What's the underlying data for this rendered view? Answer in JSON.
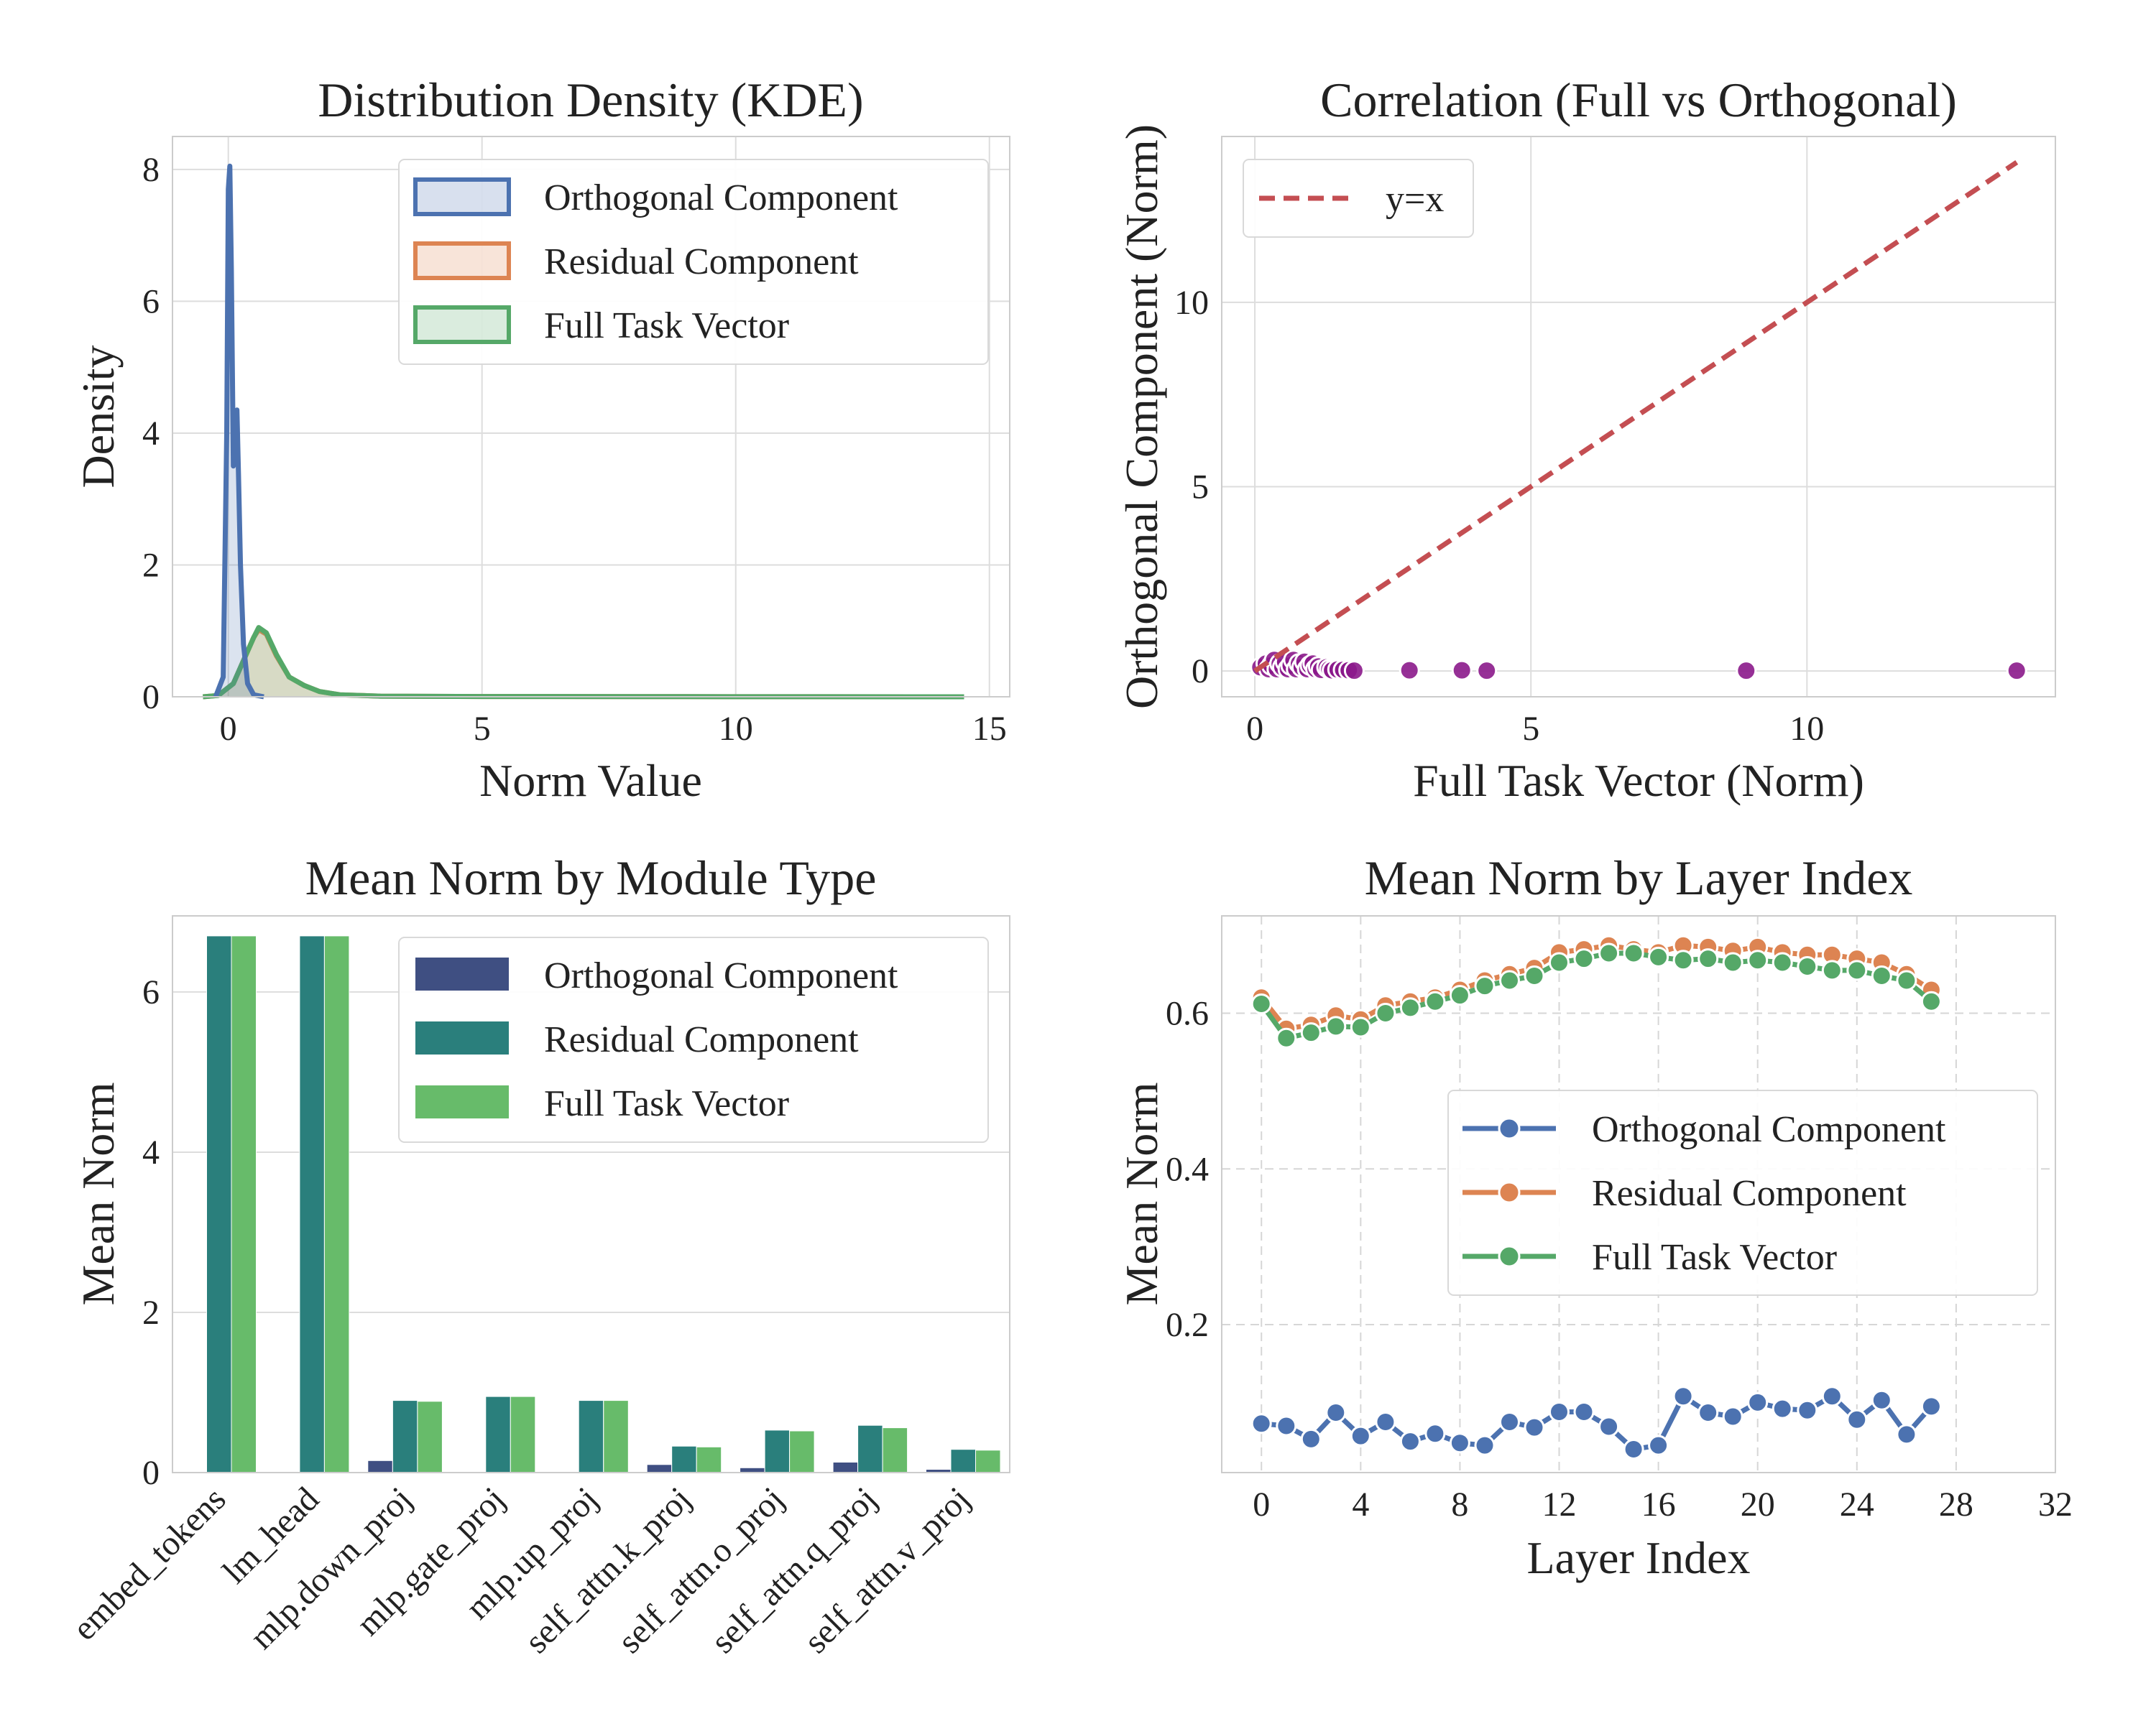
{
  "colors": {
    "orthogonal": "#4c72b0",
    "residual": "#dd8452",
    "full": "#55a868",
    "scatter": "#8b1a8b",
    "yx": "#c44e52",
    "bar_orthogonal": "#3f4f82",
    "bar_residual": "#2a7f7c",
    "bar_full": "#67bb6a"
  },
  "chart_data": [
    {
      "type": "area",
      "title": "Distribution Density (KDE)",
      "xlabel": "Norm Value",
      "ylabel": "Density",
      "xlim": [
        -1.1,
        15.4
      ],
      "ylim": [
        0,
        8.5
      ],
      "xticks": [
        0,
        5,
        10,
        15
      ],
      "yticks": [
        0,
        2,
        4,
        6,
        8
      ],
      "legend_loc": "top-right",
      "series": [
        {
          "name": "Orthogonal Component",
          "key": "orthogonal",
          "points": [
            [
              -0.25,
              0
            ],
            [
              -0.1,
              0.3
            ],
            [
              -0.03,
              4.0
            ],
            [
              0.0,
              7.7
            ],
            [
              0.03,
              8.05
            ],
            [
              0.06,
              6.5
            ],
            [
              0.1,
              3.5
            ],
            [
              0.13,
              4.2
            ],
            [
              0.17,
              4.35
            ],
            [
              0.2,
              3.4
            ],
            [
              0.24,
              2.0
            ],
            [
              0.3,
              0.8
            ],
            [
              0.38,
              0.2
            ],
            [
              0.5,
              0.03
            ],
            [
              0.7,
              0
            ]
          ]
        },
        {
          "name": "Residual Component",
          "key": "residual",
          "points": [
            [
              -0.5,
              0
            ],
            [
              -0.2,
              0.02
            ],
            [
              0.1,
              0.2
            ],
            [
              0.3,
              0.55
            ],
            [
              0.5,
              0.9
            ],
            [
              0.6,
              1.02
            ],
            [
              0.75,
              0.95
            ],
            [
              0.95,
              0.62
            ],
            [
              1.2,
              0.3
            ],
            [
              1.5,
              0.17
            ],
            [
              1.8,
              0.08
            ],
            [
              2.2,
              0.03
            ],
            [
              3.0,
              0.01
            ],
            [
              5.0,
              0.004
            ],
            [
              9.0,
              0.002
            ],
            [
              14.5,
              0
            ]
          ]
        },
        {
          "name": "Full Task Vector",
          "key": "full",
          "points": [
            [
              -0.5,
              0
            ],
            [
              -0.2,
              0.02
            ],
            [
              0.1,
              0.2
            ],
            [
              0.3,
              0.55
            ],
            [
              0.5,
              0.9
            ],
            [
              0.6,
              1.05
            ],
            [
              0.75,
              0.97
            ],
            [
              0.95,
              0.64
            ],
            [
              1.2,
              0.3
            ],
            [
              1.5,
              0.17
            ],
            [
              1.8,
              0.08
            ],
            [
              2.2,
              0.03
            ],
            [
              3.0,
              0.01
            ],
            [
              5.0,
              0.004
            ],
            [
              9.0,
              0.002
            ],
            [
              14.5,
              0
            ]
          ]
        }
      ]
    },
    {
      "type": "scatter",
      "title": "Correlation (Full vs Orthogonal)",
      "xlabel": "Full Task Vector (Norm)",
      "ylabel": "Orthogonal Component (Norm)",
      "xlim": [
        -0.6,
        14.5
      ],
      "ylim": [
        -0.7,
        14.5
      ],
      "xticks": [
        0,
        5,
        10
      ],
      "yticks": [
        0,
        5,
        10
      ],
      "legend_loc": "top-left",
      "line": {
        "name": "y=x",
        "points": [
          [
            0,
            0
          ],
          [
            13.8,
            13.8
          ]
        ]
      },
      "points": [
        [
          0.1,
          0.1
        ],
        [
          0.2,
          0.2
        ],
        [
          0.25,
          0.05
        ],
        [
          0.3,
          0.15
        ],
        [
          0.35,
          0.3
        ],
        [
          0.4,
          0.05
        ],
        [
          0.45,
          0.2
        ],
        [
          0.5,
          0.1
        ],
        [
          0.55,
          0.25
        ],
        [
          0.6,
          0.05
        ],
        [
          0.65,
          0.15
        ],
        [
          0.7,
          0.3
        ],
        [
          0.75,
          0.05
        ],
        [
          0.8,
          0.2
        ],
        [
          0.85,
          0.1
        ],
        [
          0.9,
          0.25
        ],
        [
          0.95,
          0.05
        ],
        [
          1.0,
          0.15
        ],
        [
          1.05,
          0.2
        ],
        [
          1.1,
          0.05
        ],
        [
          1.15,
          0.12
        ],
        [
          1.2,
          0.03
        ],
        [
          1.3,
          0.1
        ],
        [
          1.35,
          0.05
        ],
        [
          1.4,
          0.02
        ],
        [
          1.5,
          0.04
        ],
        [
          1.6,
          0.03
        ],
        [
          1.7,
          0.02
        ],
        [
          1.8,
          0.01
        ],
        [
          2.8,
          0.02
        ],
        [
          3.75,
          0.02
        ],
        [
          4.2,
          0.01
        ],
        [
          8.9,
          0.01
        ],
        [
          13.8,
          0.01
        ]
      ]
    },
    {
      "type": "bar",
      "title": "Mean Norm by Module Type",
      "xlabel": "",
      "ylabel": "Mean Norm",
      "ylim": [
        0,
        6.95
      ],
      "yticks": [
        0,
        2,
        4,
        6
      ],
      "legend_loc": "top-right",
      "categories": [
        "embed_tokens",
        "lm_head",
        "mlp.down_proj",
        "mlp.gate_proj",
        "mlp.up_proj",
        "self_attn.k_proj",
        "self_attn.o_proj",
        "self_attn.q_proj",
        "self_attn.v_proj"
      ],
      "series": [
        {
          "name": "Orthogonal Component",
          "key": "bar_orthogonal",
          "values": [
            0.0,
            0.0,
            0.15,
            0.0,
            0.0,
            0.1,
            0.06,
            0.13,
            0.04
          ]
        },
        {
          "name": "Residual Component",
          "key": "bar_residual",
          "values": [
            6.7,
            6.7,
            0.9,
            0.95,
            0.9,
            0.33,
            0.53,
            0.59,
            0.29
          ]
        },
        {
          "name": "Full Task Vector",
          "key": "bar_full",
          "values": [
            6.7,
            6.7,
            0.89,
            0.95,
            0.9,
            0.32,
            0.52,
            0.56,
            0.28
          ]
        }
      ]
    },
    {
      "type": "line",
      "title": "Mean Norm by Layer Index",
      "xlabel": "Layer Index",
      "ylabel": "Mean Norm",
      "xlim": [
        -1.6,
        32
      ],
      "ylim": [
        0.01,
        0.725
      ],
      "xticks": [
        0,
        4,
        8,
        12,
        16,
        20,
        24,
        28,
        32
      ],
      "yticks": [
        0.2,
        0.4,
        0.6
      ],
      "legend_loc": "center-right",
      "x": [
        0,
        1,
        2,
        3,
        4,
        5,
        6,
        7,
        8,
        9,
        10,
        11,
        12,
        13,
        14,
        15,
        16,
        17,
        18,
        19,
        20,
        21,
        22,
        23,
        24,
        25,
        26,
        27
      ],
      "series": [
        {
          "name": "Orthogonal Component",
          "key": "orthogonal",
          "values": [
            0.073,
            0.07,
            0.053,
            0.087,
            0.057,
            0.075,
            0.05,
            0.06,
            0.048,
            0.045,
            0.075,
            0.068,
            0.088,
            0.088,
            0.069,
            0.04,
            0.045,
            0.108,
            0.087,
            0.082,
            0.1,
            0.092,
            0.09,
            0.108,
            0.078,
            0.103,
            0.059,
            0.095
          ]
        },
        {
          "name": "Residual Component",
          "key": "residual",
          "values": [
            0.62,
            0.58,
            0.585,
            0.597,
            0.592,
            0.61,
            0.615,
            0.62,
            0.63,
            0.642,
            0.65,
            0.658,
            0.678,
            0.682,
            0.687,
            0.682,
            0.678,
            0.687,
            0.685,
            0.68,
            0.685,
            0.678,
            0.675,
            0.675,
            0.67,
            0.665,
            0.65,
            0.63
          ]
        },
        {
          "name": "Full Task Vector",
          "key": "full",
          "values": [
            0.612,
            0.568,
            0.575,
            0.583,
            0.582,
            0.6,
            0.607,
            0.615,
            0.623,
            0.635,
            0.642,
            0.648,
            0.665,
            0.67,
            0.677,
            0.677,
            0.672,
            0.668,
            0.67,
            0.665,
            0.668,
            0.665,
            0.66,
            0.655,
            0.655,
            0.648,
            0.642,
            0.615
          ]
        }
      ]
    }
  ]
}
